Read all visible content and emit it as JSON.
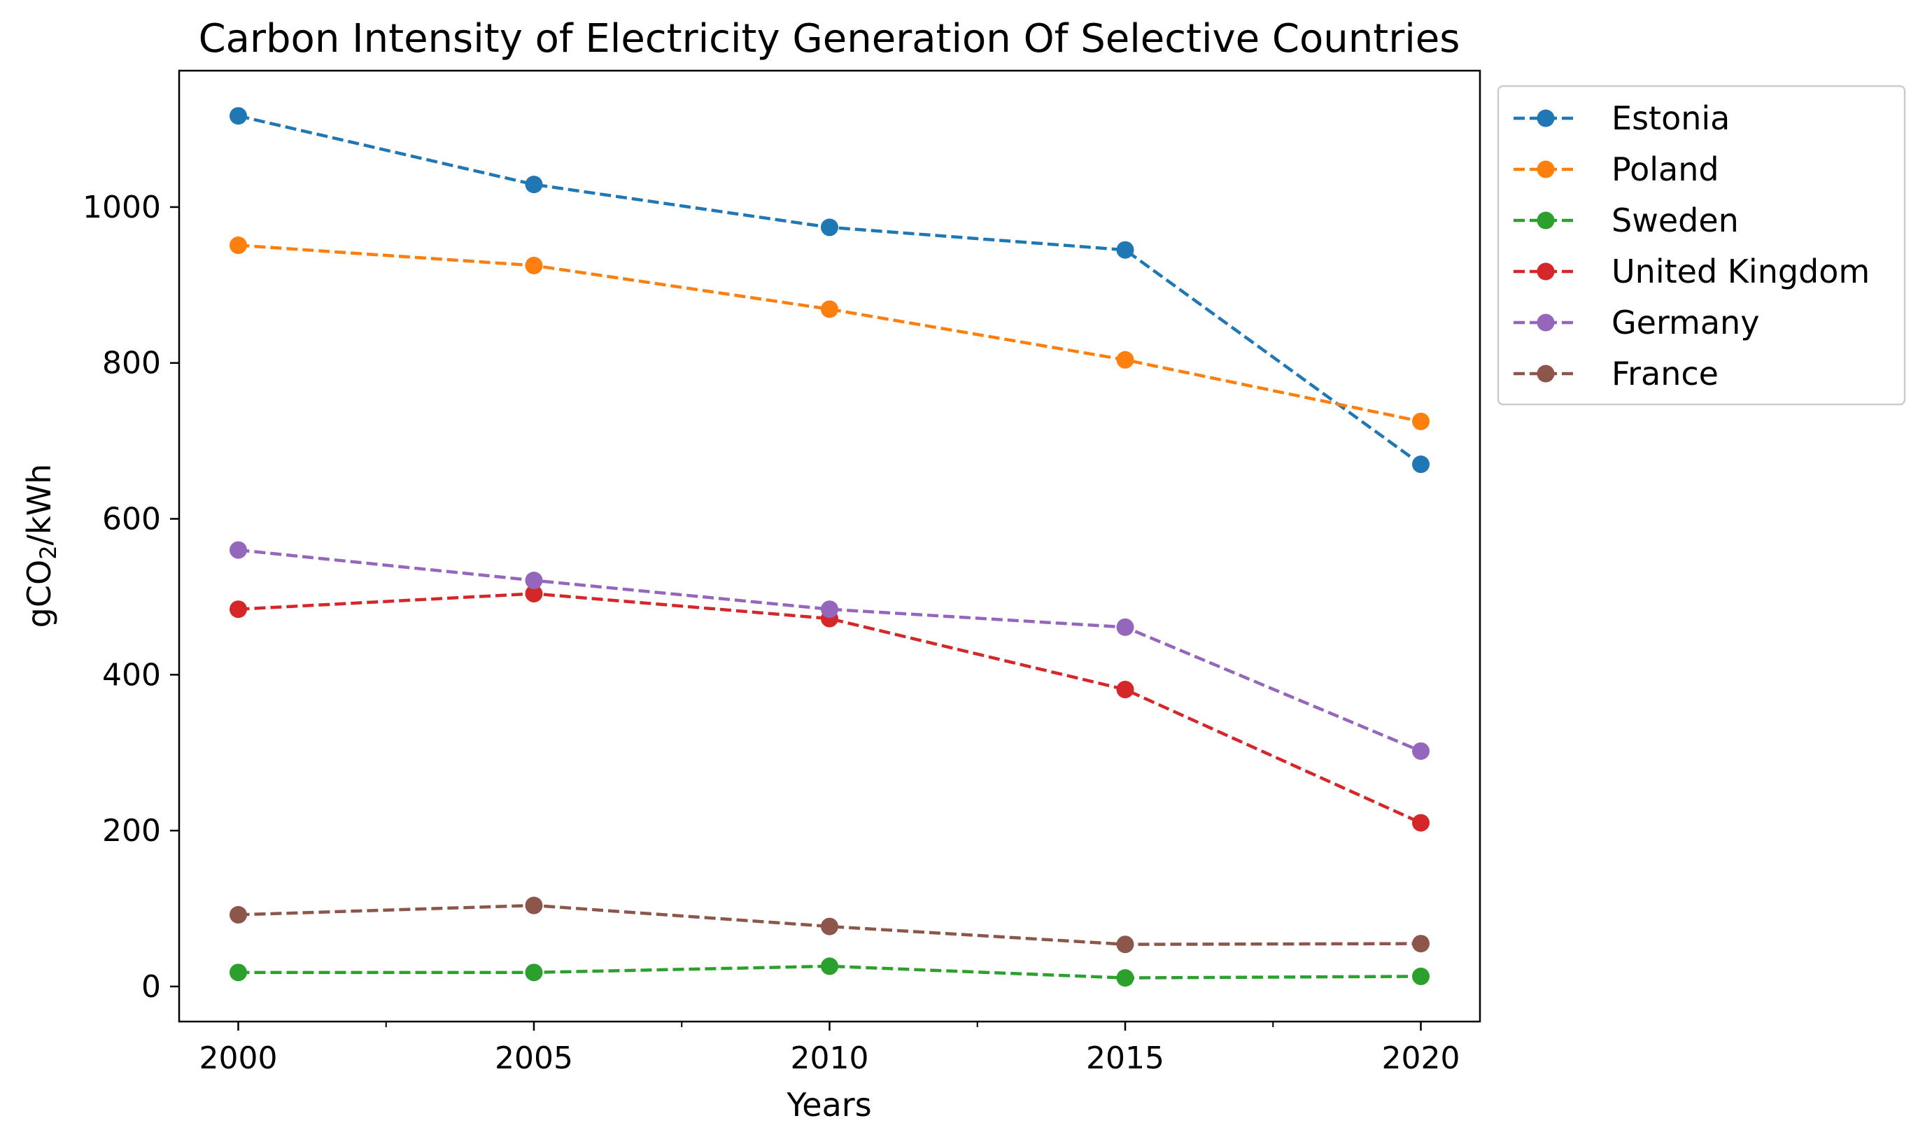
{
  "chart_data": {
    "type": "line",
    "title": "Carbon Intensity of Electricity Generation Of Selective Countries",
    "xlabel": "Years",
    "ylabel_main": "gCO",
    "ylabel_sub": "2",
    "ylabel_unit": "/kWh",
    "x": [
      2000,
      2005,
      2010,
      2015,
      2020
    ],
    "xlim": [
      1999,
      2021
    ],
    "ylim": [
      -45,
      1175
    ],
    "xticks": [
      2000,
      2005,
      2010,
      2015,
      2020
    ],
    "xminor_ticks": [
      2002.5,
      2007.5,
      2012.5,
      2017.5
    ],
    "yticks": [
      0,
      200,
      400,
      600,
      800,
      1000
    ],
    "grid": false,
    "legend_position": "outside-upper-right",
    "line_style": "dashed",
    "marker": "circle",
    "series": [
      {
        "name": "Estonia",
        "color": "#1f77b4",
        "values": [
          1117,
          1029,
          974,
          945,
          670
        ]
      },
      {
        "name": "Poland",
        "color": "#ff7f0e",
        "values": [
          951,
          925,
          869,
          804,
          725
        ]
      },
      {
        "name": "Sweden",
        "color": "#2ca02c",
        "values": [
          18,
          18,
          26,
          11,
          13
        ]
      },
      {
        "name": "United Kingdom",
        "color": "#d62728",
        "values": [
          484,
          504,
          472,
          381,
          210
        ]
      },
      {
        "name": "Germany",
        "color": "#9467bd",
        "values": [
          560,
          521,
          484,
          461,
          302
        ]
      },
      {
        "name": "France",
        "color": "#8c564b",
        "values": [
          92,
          104,
          77,
          54,
          55
        ]
      }
    ]
  }
}
